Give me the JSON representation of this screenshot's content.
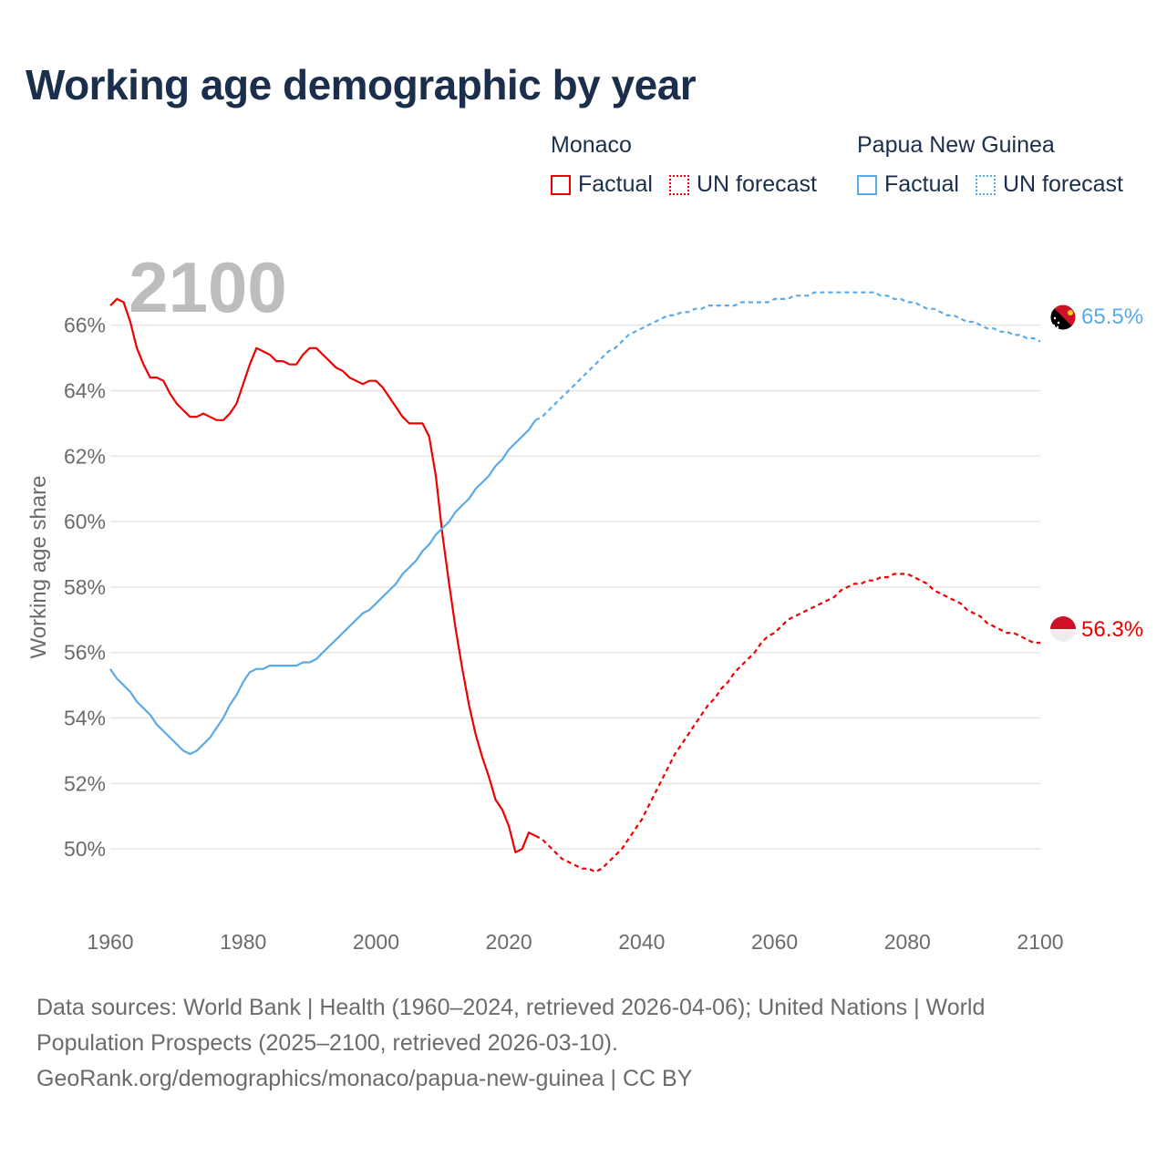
{
  "title": "Working age demographic by year",
  "legend": {
    "groups": [
      {
        "name": "Monaco",
        "color": "#ee0000",
        "factual_label": "Factual",
        "forecast_label": "UN forecast"
      },
      {
        "name": "Papua New Guinea",
        "color": "#5aaae8",
        "factual_label": "Factual",
        "forecast_label": "UN forecast"
      }
    ]
  },
  "chart_data": {
    "type": "line",
    "title": "Working age demographic by year",
    "xlabel": "",
    "ylabel": "Working age share",
    "xlim": [
      1960,
      2100
    ],
    "ylim": [
      48,
      67.8
    ],
    "x_ticks": [
      "1960",
      "1980",
      "2000",
      "2020",
      "2040",
      "2060",
      "2080",
      "2100"
    ],
    "y_ticks": [
      "50%",
      "52%",
      "54%",
      "56%",
      "58%",
      "60%",
      "62%",
      "64%",
      "66%"
    ],
    "year_watermark": "2100",
    "factual_range": [
      1960,
      2024
    ],
    "forecast_range": [
      2025,
      2100
    ],
    "series": [
      {
        "name": "Monaco",
        "color": "#ee0000",
        "end_label": "56.3%",
        "points": [
          [
            1960,
            66.6
          ],
          [
            1961,
            66.8
          ],
          [
            1962,
            66.7
          ],
          [
            1963,
            66.1
          ],
          [
            1964,
            65.3
          ],
          [
            1965,
            64.8
          ],
          [
            1966,
            64.4
          ],
          [
            1967,
            64.4
          ],
          [
            1968,
            64.3
          ],
          [
            1969,
            63.9
          ],
          [
            1970,
            63.6
          ],
          [
            1971,
            63.4
          ],
          [
            1972,
            63.2
          ],
          [
            1973,
            63.2
          ],
          [
            1974,
            63.3
          ],
          [
            1975,
            63.2
          ],
          [
            1976,
            63.1
          ],
          [
            1977,
            63.1
          ],
          [
            1978,
            63.3
          ],
          [
            1979,
            63.6
          ],
          [
            1980,
            64.2
          ],
          [
            1981,
            64.8
          ],
          [
            1982,
            65.3
          ],
          [
            1983,
            65.2
          ],
          [
            1984,
            65.1
          ],
          [
            1985,
            64.9
          ],
          [
            1986,
            64.9
          ],
          [
            1987,
            64.8
          ],
          [
            1988,
            64.8
          ],
          [
            1989,
            65.1
          ],
          [
            1990,
            65.3
          ],
          [
            1991,
            65.3
          ],
          [
            1992,
            65.1
          ],
          [
            1993,
            64.9
          ],
          [
            1994,
            64.7
          ],
          [
            1995,
            64.6
          ],
          [
            1996,
            64.4
          ],
          [
            1997,
            64.3
          ],
          [
            1998,
            64.2
          ],
          [
            1999,
            64.3
          ],
          [
            2000,
            64.3
          ],
          [
            2001,
            64.1
          ],
          [
            2002,
            63.8
          ],
          [
            2003,
            63.5
          ],
          [
            2004,
            63.2
          ],
          [
            2005,
            63.0
          ],
          [
            2006,
            63.0
          ],
          [
            2007,
            63.0
          ],
          [
            2008,
            62.6
          ],
          [
            2009,
            61.4
          ],
          [
            2010,
            59.6
          ],
          [
            2011,
            58.1
          ],
          [
            2012,
            56.7
          ],
          [
            2013,
            55.5
          ],
          [
            2014,
            54.4
          ],
          [
            2015,
            53.5
          ],
          [
            2016,
            52.8
          ],
          [
            2017,
            52.2
          ],
          [
            2018,
            51.5
          ],
          [
            2019,
            51.2
          ],
          [
            2020,
            50.7
          ],
          [
            2021,
            49.9
          ],
          [
            2022,
            50.0
          ],
          [
            2023,
            50.5
          ],
          [
            2024,
            50.4
          ],
          [
            2025,
            50.3
          ],
          [
            2026,
            50.1
          ],
          [
            2027,
            49.9
          ],
          [
            2028,
            49.7
          ],
          [
            2029,
            49.6
          ],
          [
            2030,
            49.5
          ],
          [
            2031,
            49.4
          ],
          [
            2032,
            49.4
          ],
          [
            2033,
            49.3
          ],
          [
            2034,
            49.4
          ],
          [
            2035,
            49.6
          ],
          [
            2036,
            49.8
          ],
          [
            2037,
            50.0
          ],
          [
            2038,
            50.3
          ],
          [
            2039,
            50.6
          ],
          [
            2040,
            50.9
          ],
          [
            2041,
            51.3
          ],
          [
            2042,
            51.7
          ],
          [
            2043,
            52.1
          ],
          [
            2044,
            52.5
          ],
          [
            2045,
            52.9
          ],
          [
            2046,
            53.2
          ],
          [
            2047,
            53.5
          ],
          [
            2048,
            53.8
          ],
          [
            2049,
            54.1
          ],
          [
            2050,
            54.4
          ],
          [
            2051,
            54.6
          ],
          [
            2052,
            54.9
          ],
          [
            2053,
            55.1
          ],
          [
            2054,
            55.4
          ],
          [
            2055,
            55.6
          ],
          [
            2056,
            55.8
          ],
          [
            2057,
            56.0
          ],
          [
            2058,
            56.3
          ],
          [
            2059,
            56.5
          ],
          [
            2060,
            56.6
          ],
          [
            2061,
            56.8
          ],
          [
            2062,
            57.0
          ],
          [
            2063,
            57.1
          ],
          [
            2064,
            57.2
          ],
          [
            2065,
            57.3
          ],
          [
            2066,
            57.4
          ],
          [
            2067,
            57.5
          ],
          [
            2068,
            57.6
          ],
          [
            2069,
            57.7
          ],
          [
            2070,
            57.9
          ],
          [
            2071,
            58.0
          ],
          [
            2072,
            58.1
          ],
          [
            2073,
            58.1
          ],
          [
            2074,
            58.2
          ],
          [
            2075,
            58.2
          ],
          [
            2076,
            58.3
          ],
          [
            2077,
            58.3
          ],
          [
            2078,
            58.4
          ],
          [
            2079,
            58.4
          ],
          [
            2080,
            58.4
          ],
          [
            2081,
            58.3
          ],
          [
            2082,
            58.2
          ],
          [
            2083,
            58.1
          ],
          [
            2084,
            57.9
          ],
          [
            2085,
            57.8
          ],
          [
            2086,
            57.7
          ],
          [
            2087,
            57.6
          ],
          [
            2088,
            57.5
          ],
          [
            2089,
            57.3
          ],
          [
            2090,
            57.2
          ],
          [
            2091,
            57.1
          ],
          [
            2092,
            56.9
          ],
          [
            2093,
            56.8
          ],
          [
            2094,
            56.7
          ],
          [
            2095,
            56.6
          ],
          [
            2096,
            56.6
          ],
          [
            2097,
            56.5
          ],
          [
            2098,
            56.4
          ],
          [
            2099,
            56.3
          ],
          [
            2100,
            56.3
          ]
        ]
      },
      {
        "name": "Papua New Guinea",
        "color": "#5aaae8",
        "end_label": "65.5%",
        "points": [
          [
            1960,
            55.5
          ],
          [
            1961,
            55.2
          ],
          [
            1962,
            55.0
          ],
          [
            1963,
            54.8
          ],
          [
            1964,
            54.5
          ],
          [
            1965,
            54.3
          ],
          [
            1966,
            54.1
          ],
          [
            1967,
            53.8
          ],
          [
            1968,
            53.6
          ],
          [
            1969,
            53.4
          ],
          [
            1970,
            53.2
          ],
          [
            1971,
            53.0
          ],
          [
            1972,
            52.9
          ],
          [
            1973,
            53.0
          ],
          [
            1974,
            53.2
          ],
          [
            1975,
            53.4
          ],
          [
            1976,
            53.7
          ],
          [
            1977,
            54.0
          ],
          [
            1978,
            54.4
          ],
          [
            1979,
            54.7
          ],
          [
            1980,
            55.1
          ],
          [
            1981,
            55.4
          ],
          [
            1982,
            55.5
          ],
          [
            1983,
            55.5
          ],
          [
            1984,
            55.6
          ],
          [
            1985,
            55.6
          ],
          [
            1986,
            55.6
          ],
          [
            1987,
            55.6
          ],
          [
            1988,
            55.6
          ],
          [
            1989,
            55.7
          ],
          [
            1990,
            55.7
          ],
          [
            1991,
            55.8
          ],
          [
            1992,
            56.0
          ],
          [
            1993,
            56.2
          ],
          [
            1994,
            56.4
          ],
          [
            1995,
            56.6
          ],
          [
            1996,
            56.8
          ],
          [
            1997,
            57.0
          ],
          [
            1998,
            57.2
          ],
          [
            1999,
            57.3
          ],
          [
            2000,
            57.5
          ],
          [
            2001,
            57.7
          ],
          [
            2002,
            57.9
          ],
          [
            2003,
            58.1
          ],
          [
            2004,
            58.4
          ],
          [
            2005,
            58.6
          ],
          [
            2006,
            58.8
          ],
          [
            2007,
            59.1
          ],
          [
            2008,
            59.3
          ],
          [
            2009,
            59.6
          ],
          [
            2010,
            59.8
          ],
          [
            2011,
            60.0
          ],
          [
            2012,
            60.3
          ],
          [
            2013,
            60.5
          ],
          [
            2014,
            60.7
          ],
          [
            2015,
            61.0
          ],
          [
            2016,
            61.2
          ],
          [
            2017,
            61.4
          ],
          [
            2018,
            61.7
          ],
          [
            2019,
            61.9
          ],
          [
            2020,
            62.2
          ],
          [
            2021,
            62.4
          ],
          [
            2022,
            62.6
          ],
          [
            2023,
            62.8
          ],
          [
            2024,
            63.1
          ],
          [
            2025,
            63.2
          ],
          [
            2026,
            63.4
          ],
          [
            2027,
            63.6
          ],
          [
            2028,
            63.8
          ],
          [
            2029,
            64.0
          ],
          [
            2030,
            64.2
          ],
          [
            2031,
            64.4
          ],
          [
            2032,
            64.6
          ],
          [
            2033,
            64.8
          ],
          [
            2034,
            65.0
          ],
          [
            2035,
            65.2
          ],
          [
            2036,
            65.3
          ],
          [
            2037,
            65.5
          ],
          [
            2038,
            65.7
          ],
          [
            2039,
            65.8
          ],
          [
            2040,
            65.9
          ],
          [
            2041,
            66.0
          ],
          [
            2042,
            66.1
          ],
          [
            2043,
            66.2
          ],
          [
            2044,
            66.3
          ],
          [
            2045,
            66.3
          ],
          [
            2046,
            66.4
          ],
          [
            2047,
            66.4
          ],
          [
            2048,
            66.5
          ],
          [
            2049,
            66.5
          ],
          [
            2050,
            66.6
          ],
          [
            2051,
            66.6
          ],
          [
            2052,
            66.6
          ],
          [
            2053,
            66.6
          ],
          [
            2054,
            66.6
          ],
          [
            2055,
            66.7
          ],
          [
            2056,
            66.7
          ],
          [
            2057,
            66.7
          ],
          [
            2058,
            66.7
          ],
          [
            2059,
            66.7
          ],
          [
            2060,
            66.8
          ],
          [
            2061,
            66.8
          ],
          [
            2062,
            66.8
          ],
          [
            2063,
            66.9
          ],
          [
            2064,
            66.9
          ],
          [
            2065,
            66.9
          ],
          [
            2066,
            67.0
          ],
          [
            2067,
            67.0
          ],
          [
            2068,
            67.0
          ],
          [
            2069,
            67.0
          ],
          [
            2070,
            67.0
          ],
          [
            2071,
            67.0
          ],
          [
            2072,
            67.0
          ],
          [
            2073,
            67.0
          ],
          [
            2074,
            67.0
          ],
          [
            2075,
            67.0
          ],
          [
            2076,
            66.9
          ],
          [
            2077,
            66.9
          ],
          [
            2078,
            66.8
          ],
          [
            2079,
            66.8
          ],
          [
            2080,
            66.7
          ],
          [
            2081,
            66.7
          ],
          [
            2082,
            66.6
          ],
          [
            2083,
            66.5
          ],
          [
            2084,
            66.5
          ],
          [
            2085,
            66.4
          ],
          [
            2086,
            66.3
          ],
          [
            2087,
            66.3
          ],
          [
            2088,
            66.2
          ],
          [
            2089,
            66.1
          ],
          [
            2090,
            66.1
          ],
          [
            2091,
            66.0
          ],
          [
            2092,
            65.9
          ],
          [
            2093,
            65.9
          ],
          [
            2094,
            65.8
          ],
          [
            2095,
            65.8
          ],
          [
            2096,
            65.7
          ],
          [
            2097,
            65.7
          ],
          [
            2098,
            65.6
          ],
          [
            2099,
            65.6
          ],
          [
            2100,
            65.5
          ]
        ]
      }
    ]
  },
  "footer": {
    "line1": "Data sources: World Bank | Health (1960–2024, retrieved 2026-04-06); United Nations | World",
    "line2": "Population Prospects (2025–2100, retrieved 2026-03-10).",
    "line3": "GeoRank.org/demographics/monaco/papua-new-guinea | CC BY"
  }
}
